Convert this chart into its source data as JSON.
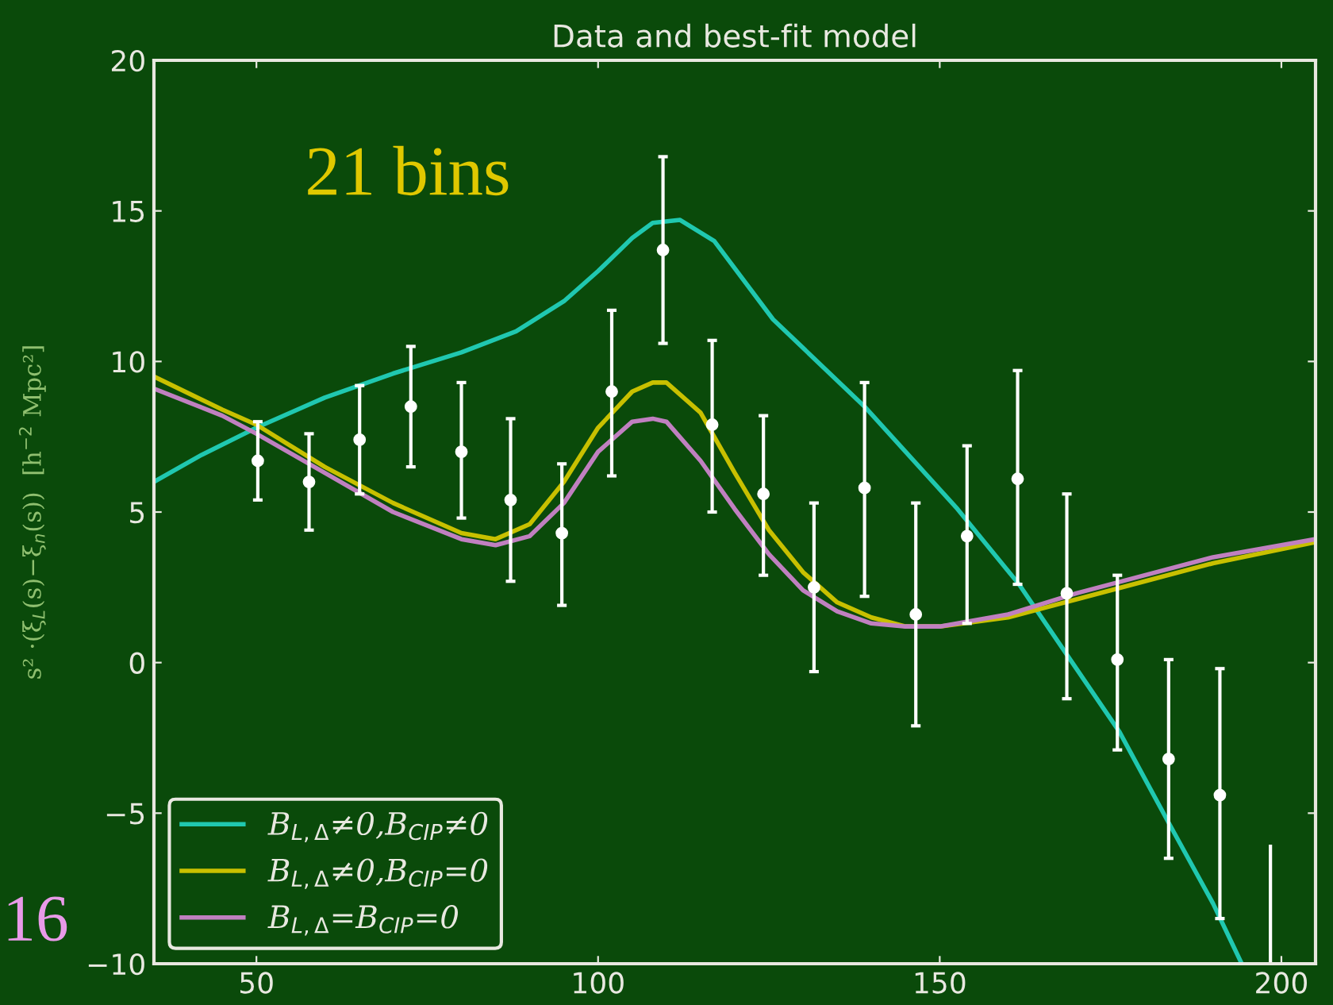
{
  "chart_data": {
    "type": "line",
    "title": "Data and best-fit model",
    "ylabel": "s² ·(ξ$_{L}$(s)−ξ$_{n}$(s))  [h$^{−2}$ Mpc²]",
    "annotations": [
      "21 bins",
      "16"
    ],
    "xlim": [
      35,
      205
    ],
    "xticks": [
      50,
      100,
      150,
      200
    ],
    "ylim": [
      -10,
      20
    ],
    "yticks": [
      {
        "value": -10,
        "label": "−10"
      },
      {
        "value": -5,
        "label": "−5"
      },
      0,
      5,
      10,
      15,
      20
    ],
    "grid": false,
    "legend": "bottom left",
    "line_style": "solid",
    "series": [
      {
        "name": "B$_{L,Δ}$≠0,B$_{CIP}$≠0",
        "color": "#20c8b0",
        "marker": "none",
        "x": [
          35,
          42,
          50,
          60,
          70,
          80,
          88,
          95,
          100,
          105,
          108,
          112,
          117,
          125.6,
          139,
          152.6,
          161.6,
          168.8,
          176.3,
          183.7,
          190,
          194.2
        ],
        "values": [
          6.0,
          6.9,
          7.8,
          8.8,
          9.6,
          10.3,
          11.0,
          12.0,
          13.0,
          14.1,
          14.6,
          14.7,
          14.0,
          11.4,
          8.5,
          5.1,
          2.6,
          0.2,
          -2.3,
          -5.4,
          -8.0,
          -10
        ]
      },
      {
        "name": "B$_{L,Δ}$≠0,B$_{CIP}$=0",
        "color": "#c8c000",
        "marker": "none",
        "x": [
          35,
          45,
          50,
          55,
          60,
          70,
          80,
          85,
          90,
          95,
          100,
          105,
          108,
          110,
          115,
          120,
          125,
          130,
          135,
          140,
          145,
          150,
          160,
          170,
          180,
          190,
          205
        ],
        "values": [
          9.5,
          8.4,
          7.9,
          7.2,
          6.5,
          5.3,
          4.3,
          4.1,
          4.6,
          6.0,
          7.8,
          9.0,
          9.3,
          9.3,
          8.3,
          6.3,
          4.4,
          3.0,
          2.0,
          1.5,
          1.2,
          1.2,
          1.5,
          2.1,
          2.7,
          3.3,
          4.0
        ]
      },
      {
        "name": "B$_{L,Δ}$=B$_{CIP}$=0",
        "color": "#c080c0",
        "marker": "none",
        "x": [
          35,
          45,
          50,
          60,
          70,
          80,
          85,
          90,
          95,
          100,
          105,
          108,
          110,
          115,
          120,
          125,
          130,
          135,
          140,
          145,
          150,
          160,
          170,
          180,
          190,
          205
        ],
        "values": [
          9.1,
          8.2,
          7.6,
          6.3,
          5.0,
          4.1,
          3.9,
          4.2,
          5.3,
          7.0,
          8.0,
          8.1,
          8.0,
          6.7,
          5.1,
          3.6,
          2.4,
          1.7,
          1.3,
          1.2,
          1.2,
          1.6,
          2.3,
          2.9,
          3.5,
          4.1
        ]
      },
      {
        "color": "#ffffff",
        "type": "scatter",
        "marker": "circle",
        "x": [
          50.2,
          57.7,
          65.1,
          72.6,
          80.0,
          87.2,
          94.7,
          102.0,
          109.5,
          116.7,
          124.2,
          131.6,
          139.0,
          146.5,
          154.0,
          161.4,
          168.6,
          176.0,
          183.5,
          191.0
        ],
        "values": [
          6.7,
          6.0,
          7.4,
          8.5,
          7.0,
          5.4,
          4.3,
          9.0,
          13.7,
          7.9,
          5.6,
          2.5,
          5.8,
          1.6,
          4.2,
          6.1,
          2.3,
          0.1,
          -3.2,
          -4.4
        ],
        "errors": [
          [
            5.4,
            8.0
          ],
          [
            4.4,
            7.6
          ],
          [
            5.6,
            9.2
          ],
          [
            6.5,
            10.5
          ],
          [
            4.8,
            9.3
          ],
          [
            2.7,
            8.1
          ],
          [
            1.9,
            6.6
          ],
          [
            6.2,
            11.7
          ],
          [
            10.6,
            16.8
          ],
          [
            5.0,
            10.7
          ],
          [
            2.9,
            8.2
          ],
          [
            -0.3,
            5.3
          ],
          [
            2.2,
            9.3
          ],
          [
            -2.1,
            5.3
          ],
          [
            1.3,
            7.2
          ],
          [
            2.6,
            9.7
          ],
          [
            -1.2,
            5.6
          ],
          [
            -2.9,
            2.9
          ],
          [
            -6.5,
            0.1
          ],
          [
            -8.5,
            -0.2
          ]
        ]
      },
      {
        "color": "#ffffff",
        "marker": "none",
        "x": [
          198.4,
          198.4
        ],
        "values": [
          -10,
          -6.1
        ]
      }
    ]
  }
}
